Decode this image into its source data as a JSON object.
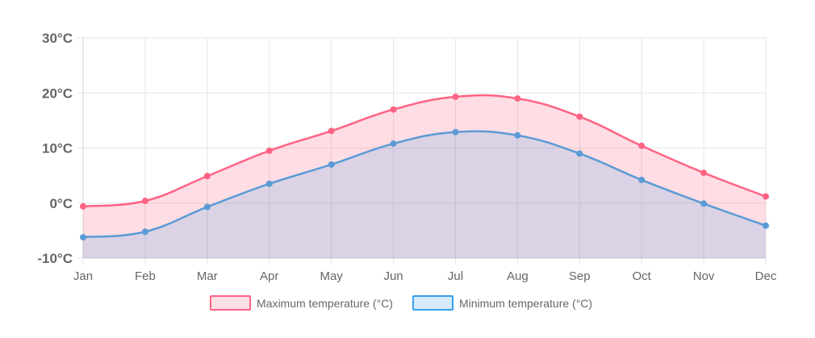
{
  "chart_data": {
    "type": "line",
    "subtype": "area",
    "categories": [
      "Jan",
      "Feb",
      "Mar",
      "Apr",
      "May",
      "Jun",
      "Jul",
      "Aug",
      "Sep",
      "Oct",
      "Nov",
      "Dec"
    ],
    "series": [
      {
        "name": "Maximum temperature (°C)",
        "values": [
          -0.6,
          0.4,
          4.9,
          9.5,
          13.1,
          17.0,
          19.3,
          19.0,
          15.7,
          10.4,
          5.5,
          1.2
        ],
        "stroke": "#ff6384",
        "fill": "rgba(255,99,132,0.22)"
      },
      {
        "name": "Minimum temperature (°C)",
        "values": [
          -6.2,
          -5.2,
          -0.7,
          3.5,
          7.0,
          10.8,
          12.9,
          12.3,
          9.0,
          4.2,
          -0.1,
          -4.1
        ],
        "stroke": "#5b9bd5",
        "fill": "rgba(54,162,235,0.18)"
      }
    ],
    "ylim": [
      -10,
      30
    ],
    "ytick_labels": [
      "30°C",
      "20°C",
      "10°C",
      "0°C",
      "-10°C"
    ],
    "legend": "bottom",
    "grid": true
  },
  "colors": {
    "max_stroke": "#ff6384",
    "max_legend_fill": "#ffe0e6",
    "min_stroke": "#36a2eb",
    "min_legend_fill": "#d7ecfb"
  }
}
